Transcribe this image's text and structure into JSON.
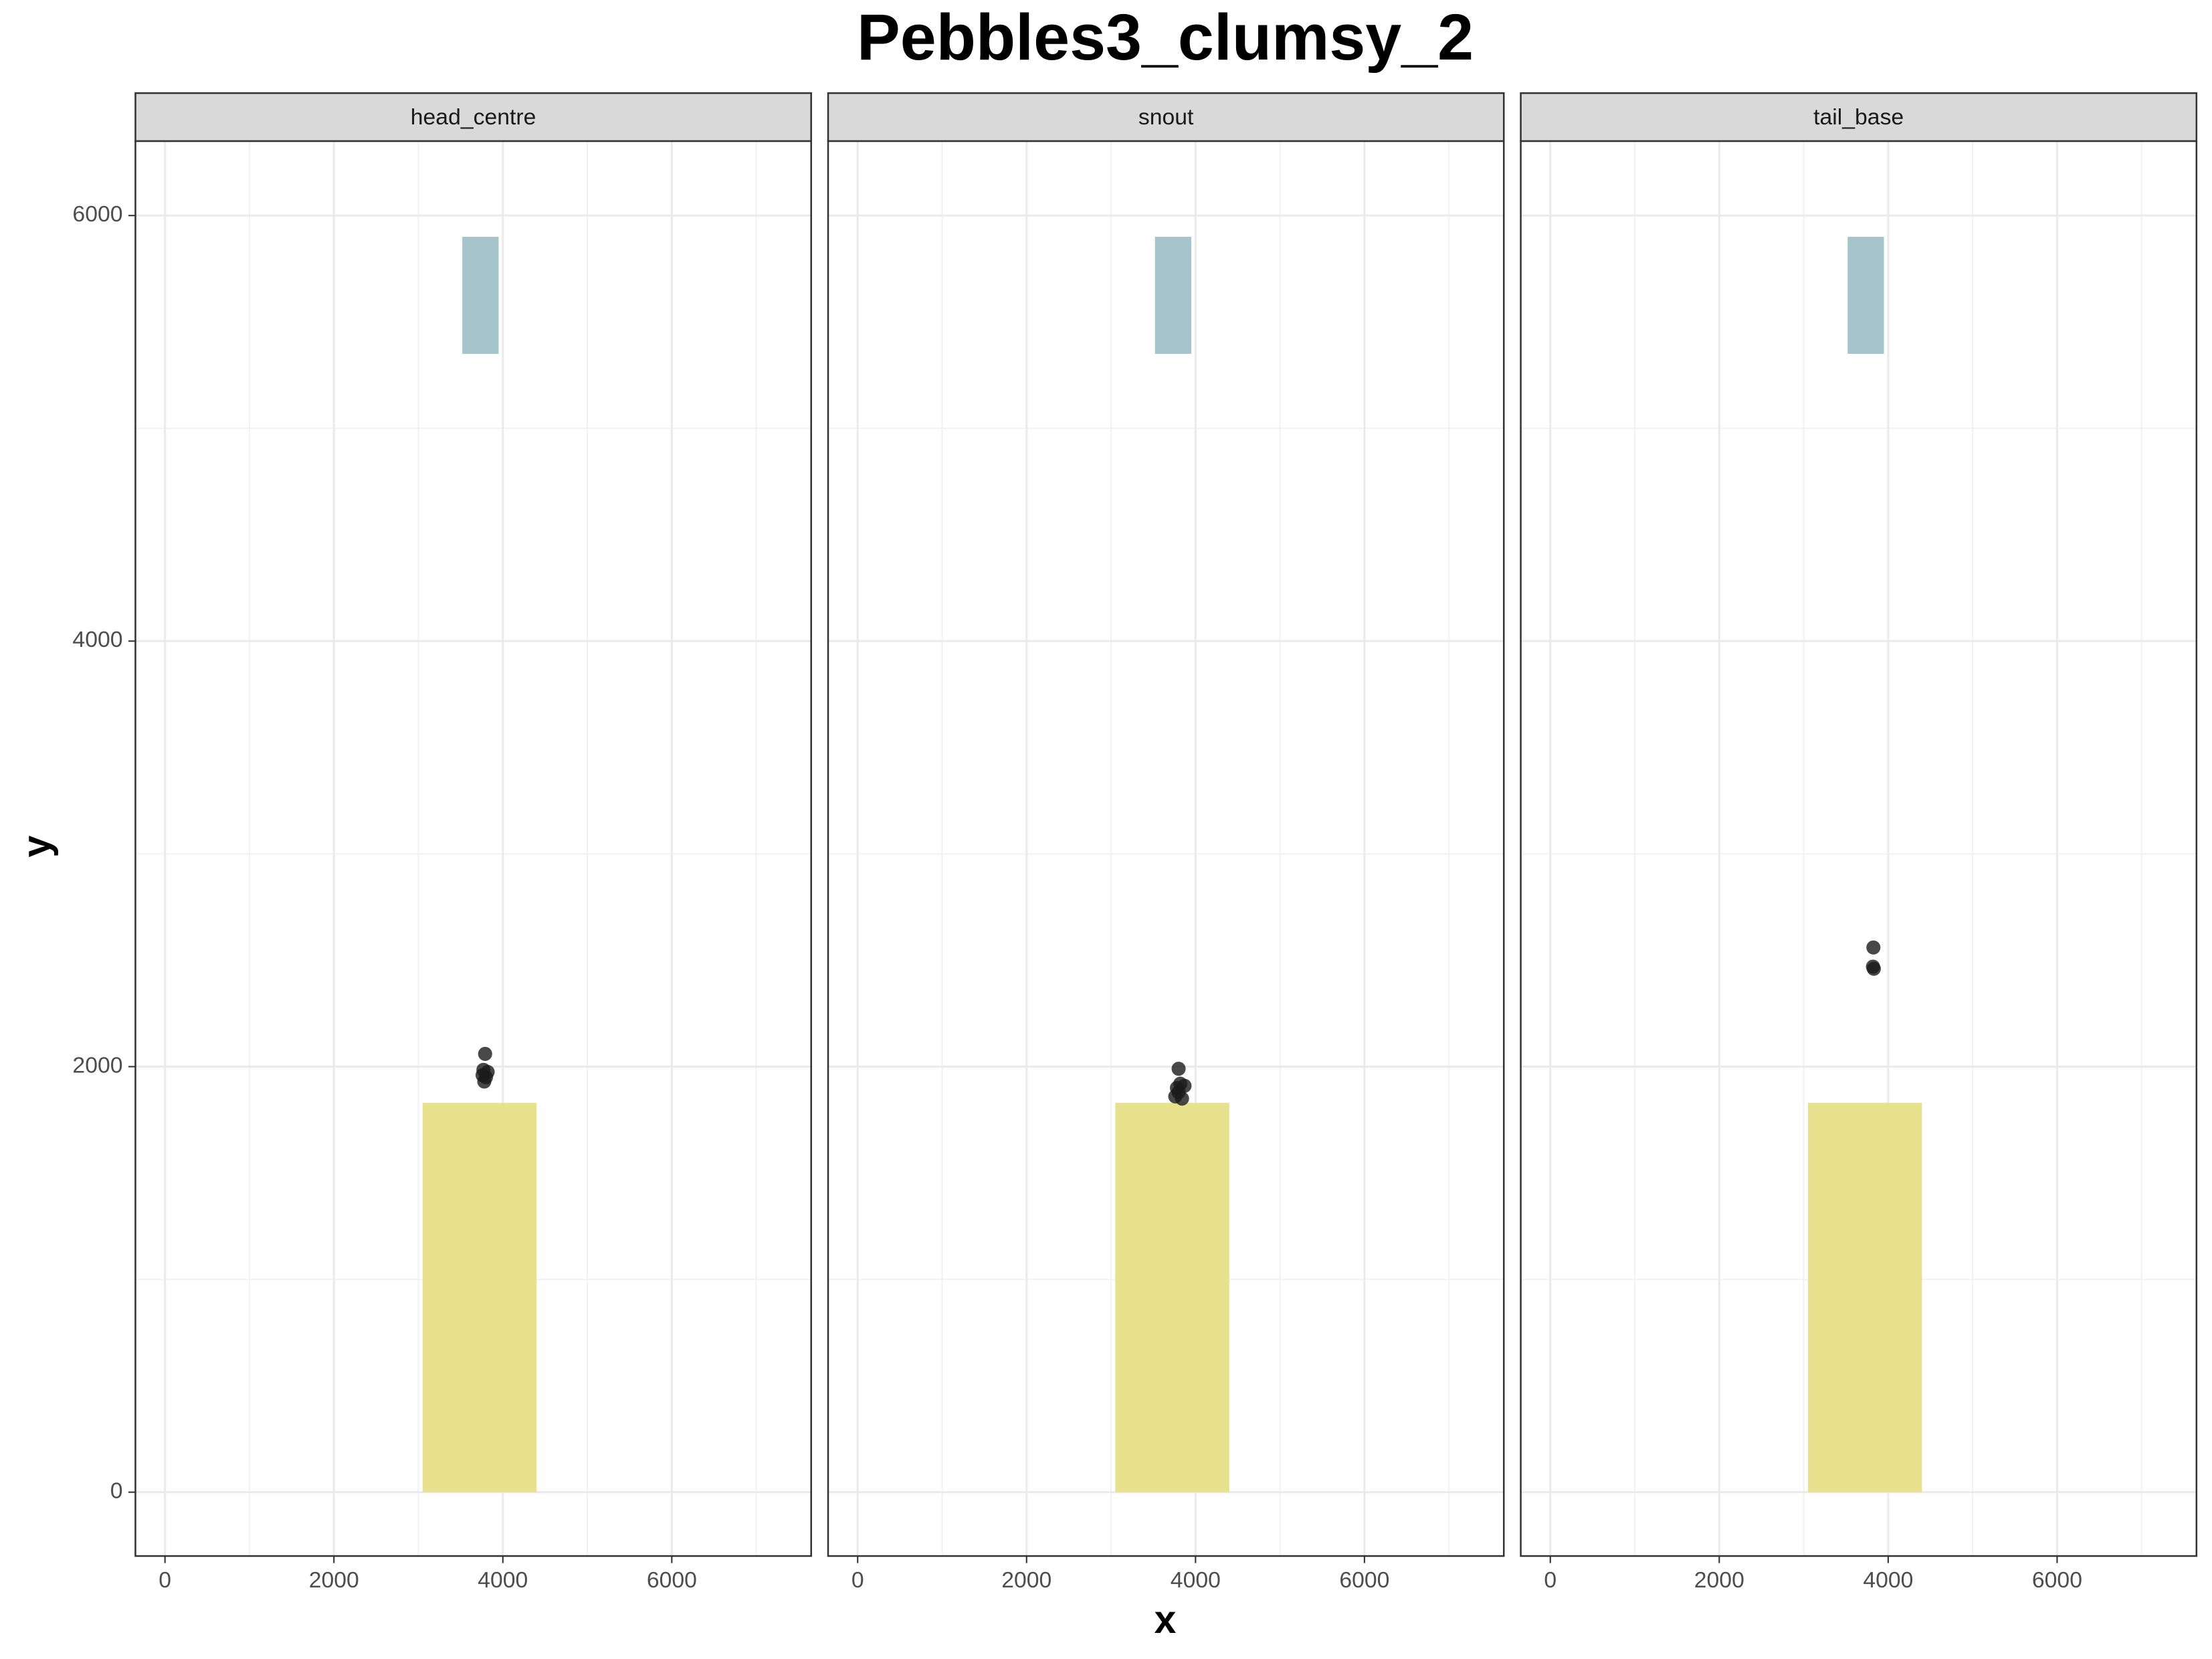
{
  "chart_data": {
    "type": "scatter",
    "title": "Pebbles3_clumsy_2",
    "x_label": "x",
    "y_label": "y",
    "xlim": [
      -350,
      7650
    ],
    "ylim": [
      -300,
      6350
    ],
    "xticks": [
      0,
      2000,
      4000,
      6000
    ],
    "yticks": [
      0,
      2000,
      4000,
      6000
    ],
    "grid": true,
    "regions": [
      {
        "color": "#a6c4cc",
        "x": [
          3520,
          3950
        ],
        "y": [
          5350,
          5900
        ]
      },
      {
        "color": "#e8e28f",
        "x": [
          3050,
          4400
        ],
        "y": [
          0,
          1830
        ]
      }
    ],
    "series": [
      {
        "name": "head_centre",
        "color": "#1a1a1a",
        "x": [
          3780,
          3760,
          3800,
          3770,
          3820,
          3790
        ],
        "values": [
          1930,
          1960,
          1950,
          1985,
          1975,
          2060
        ]
      },
      {
        "name": "snout",
        "color": "#1a1a1a",
        "x": [
          3760,
          3800,
          3840,
          3780,
          3820,
          3870,
          3800
        ],
        "values": [
          1860,
          1880,
          1850,
          1900,
          1920,
          1910,
          1990
        ]
      },
      {
        "name": "tail_base",
        "color": "#1a1a1a",
        "x": [
          3830,
          3820,
          3825
        ],
        "values": [
          2460,
          2470,
          2560
        ]
      }
    ]
  }
}
